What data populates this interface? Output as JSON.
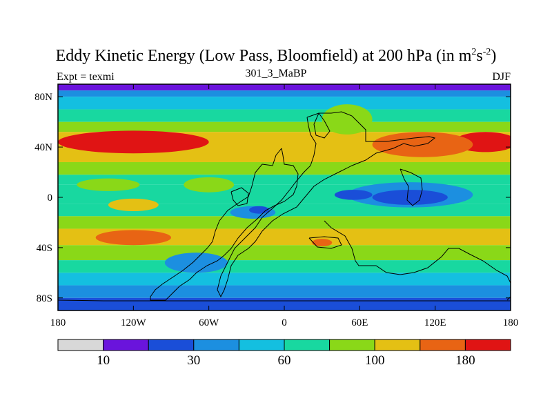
{
  "chart_data": {
    "type": "heatmap",
    "title_main": "Eddy Kinetic Energy (Low Pass, Bloomfield) at 200 hPa (in m",
    "title_unit_m_exp": "2",
    "title_unit_s": "s",
    "title_unit_s_exp": "-2",
    "title_close": ")",
    "subtitle": "301_3_MaBP",
    "left_label": "Expt = texmi",
    "right_label": "DJF",
    "x_ticks": [
      {
        "value": -180,
        "label": "180"
      },
      {
        "value": -120,
        "label": "120W"
      },
      {
        "value": -60,
        "label": "60W"
      },
      {
        "value": 0,
        "label": "0"
      },
      {
        "value": 60,
        "label": "60E"
      },
      {
        "value": 120,
        "label": "120E"
      },
      {
        "value": 180,
        "label": "180"
      }
    ],
    "y_ticks": [
      {
        "value": 80,
        "label": "80N"
      },
      {
        "value": 40,
        "label": "40N"
      },
      {
        "value": 0,
        "label": "0"
      },
      {
        "value": -40,
        "label": "40S"
      },
      {
        "value": -80,
        "label": "80S"
      }
    ],
    "x_range": [
      -180,
      180
    ],
    "y_range": [
      -90,
      90
    ],
    "colorbar": {
      "colors": [
        "#d8d8d8",
        "#6a14dc",
        "#1a4ed8",
        "#1c8fe0",
        "#14bfe0",
        "#18d8a0",
        "#8ad818",
        "#e4c014",
        "#e86414",
        "#e01414"
      ],
      "labels": [
        {
          "boundary": 1,
          "label": "10"
        },
        {
          "boundary": 3,
          "label": "30"
        },
        {
          "boundary": 5,
          "label": "60"
        },
        {
          "boundary": 7,
          "label": "100"
        },
        {
          "boundary": 9,
          "label": "180"
        }
      ]
    },
    "bands": [
      {
        "lat": [
          85,
          90
        ],
        "level": 1
      },
      {
        "lat": [
          80,
          85
        ],
        "level": 3
      },
      {
        "lat": [
          70,
          80
        ],
        "level": 4
      },
      {
        "lat": [
          60,
          70
        ],
        "level": 5
      },
      {
        "lat": [
          52,
          60
        ],
        "level": 6
      },
      {
        "lat": [
          28,
          52
        ],
        "level": 7
      },
      {
        "lat": [
          18,
          28
        ],
        "level": 6
      },
      {
        "lat": [
          10,
          18
        ],
        "level": 5
      },
      {
        "lat": [
          -5,
          10
        ],
        "level": 5
      },
      {
        "lat": [
          -15,
          -5
        ],
        "level": 5
      },
      {
        "lat": [
          -25,
          -15
        ],
        "level": 6
      },
      {
        "lat": [
          -38,
          -25
        ],
        "level": 7
      },
      {
        "lat": [
          -50,
          -38
        ],
        "level": 6
      },
      {
        "lat": [
          -60,
          -50
        ],
        "level": 5
      },
      {
        "lat": [
          -70,
          -60
        ],
        "level": 4
      },
      {
        "lat": [
          -80,
          -70
        ],
        "level": 3
      },
      {
        "lat": [
          -90,
          -80
        ],
        "level": 2
      }
    ],
    "blobs": [
      {
        "lon": -120,
        "lat": 44,
        "rx": 60,
        "ry": 9,
        "level": 9
      },
      {
        "lon": -125,
        "lat": 44,
        "rx": 45,
        "ry": 5,
        "level": 9
      },
      {
        "lon": 160,
        "lat": 44,
        "rx": 25,
        "ry": 8,
        "level": 9
      },
      {
        "lon": 110,
        "lat": 42,
        "rx": 40,
        "ry": 10,
        "level": 8
      },
      {
        "lon": -120,
        "lat": -32,
        "rx": 30,
        "ry": 6,
        "level": 8
      },
      {
        "lon": 30,
        "lat": -36,
        "rx": 8,
        "ry": 3,
        "level": 8
      },
      {
        "lon": 50,
        "lat": 62,
        "rx": 20,
        "ry": 12,
        "level": 6
      },
      {
        "lon": 100,
        "lat": 2,
        "rx": 50,
        "ry": 10,
        "level": 3
      },
      {
        "lon": 100,
        "lat": 0,
        "rx": 30,
        "ry": 6,
        "level": 2
      },
      {
        "lon": 55,
        "lat": 2,
        "rx": 15,
        "ry": 4,
        "level": 2
      },
      {
        "lon": -25,
        "lat": -12,
        "rx": 18,
        "ry": 5,
        "level": 3
      },
      {
        "lon": -20,
        "lat": -10,
        "rx": 8,
        "ry": 3,
        "level": 2
      },
      {
        "lon": -70,
        "lat": -52,
        "rx": 25,
        "ry": 8,
        "level": 3
      },
      {
        "lon": -140,
        "lat": 10,
        "rx": 25,
        "ry": 5,
        "level": 6
      },
      {
        "lon": -60,
        "lat": 10,
        "rx": 20,
        "ry": 6,
        "level": 6
      },
      {
        "lon": -120,
        "lat": -6,
        "rx": 20,
        "ry": 5,
        "level": 7
      }
    ]
  }
}
